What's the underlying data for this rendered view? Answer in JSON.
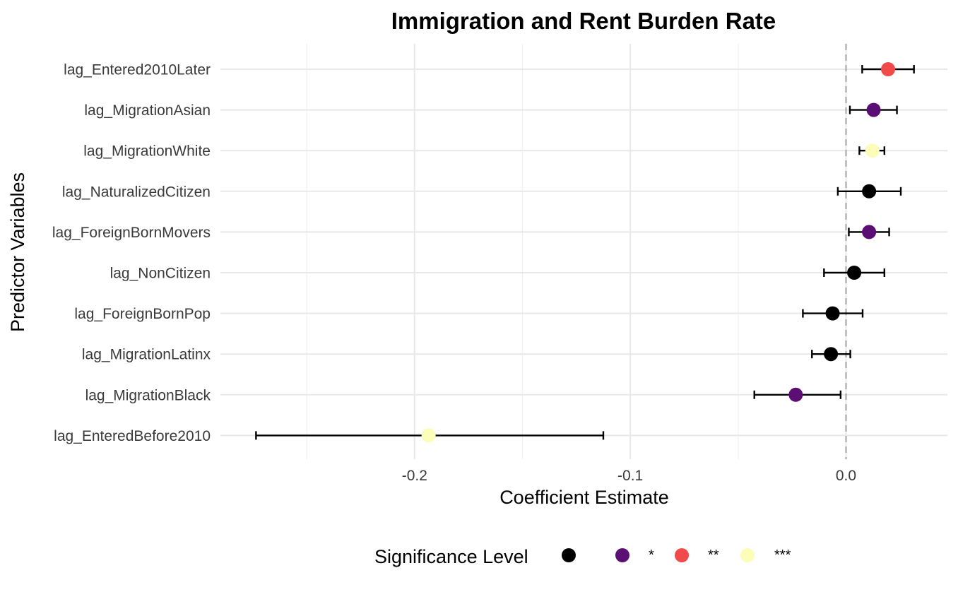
{
  "chart_data": {
    "type": "scatter",
    "subtype": "coefficient-plot-with-error-bars",
    "title": "Immigration and Rent Burden Rate",
    "xlabel": "Coefficient Estimate",
    "ylabel": "Predictor Variables",
    "xlim": [
      -0.29,
      0.047
    ],
    "x_ticks": [
      -0.2,
      -0.1,
      0.0
    ],
    "x_tick_labels": [
      "-0.2",
      "-0.1",
      "0.0"
    ],
    "reference_line": {
      "x": 0,
      "style": "dashed"
    },
    "grid": true,
    "legend": {
      "title": "Significance Level",
      "position": "bottom",
      "entries": [
        {
          "label": "",
          "color": "#000000"
        },
        {
          "label": "*",
          "color": "#5B0E74"
        },
        {
          "label": "**",
          "color": "#F04A4A"
        },
        {
          "label": "***",
          "color": "#FCFDB9"
        }
      ]
    },
    "categories": [
      "lag_Entered2010Later",
      "lag_MigrationAsian",
      "lag_MigrationWhite",
      "lag_NaturalizedCitizen",
      "lag_ForeignBornMovers",
      "lag_NonCitizen",
      "lag_ForeignBornPop",
      "lag_MigrationLatinx",
      "lag_MigrationBlack",
      "lag_EnteredBefore2010"
    ],
    "points": [
      {
        "label": "lag_Entered2010Later",
        "estimate": 0.0195,
        "lower": 0.0075,
        "upper": 0.0315,
        "significance": "**"
      },
      {
        "label": "lag_MigrationAsian",
        "estimate": 0.0128,
        "lower": 0.0018,
        "upper": 0.0236,
        "significance": "*"
      },
      {
        "label": "lag_MigrationWhite",
        "estimate": 0.0122,
        "lower": 0.0062,
        "upper": 0.0178,
        "significance": "***"
      },
      {
        "label": "lag_NaturalizedCitizen",
        "estimate": 0.0107,
        "lower": -0.0038,
        "upper": 0.0254,
        "significance": ""
      },
      {
        "label": "lag_ForeignBornMovers",
        "estimate": 0.0107,
        "lower": 0.0013,
        "upper": 0.02,
        "significance": "*"
      },
      {
        "label": "lag_NonCitizen",
        "estimate": 0.0038,
        "lower": -0.0102,
        "upper": 0.0178,
        "significance": ""
      },
      {
        "label": "lag_ForeignBornPop",
        "estimate": -0.0062,
        "lower": -0.02,
        "upper": 0.0077,
        "significance": ""
      },
      {
        "label": "lag_MigrationLatinx",
        "estimate": -0.007,
        "lower": -0.0158,
        "upper": 0.002,
        "significance": ""
      },
      {
        "label": "lag_MigrationBlack",
        "estimate": -0.0233,
        "lower": -0.0425,
        "upper": -0.0025,
        "significance": "*"
      },
      {
        "label": "lag_EnteredBefore2010",
        "estimate": -0.1935,
        "lower": -0.2735,
        "upper": -0.1125,
        "significance": "***"
      }
    ]
  }
}
